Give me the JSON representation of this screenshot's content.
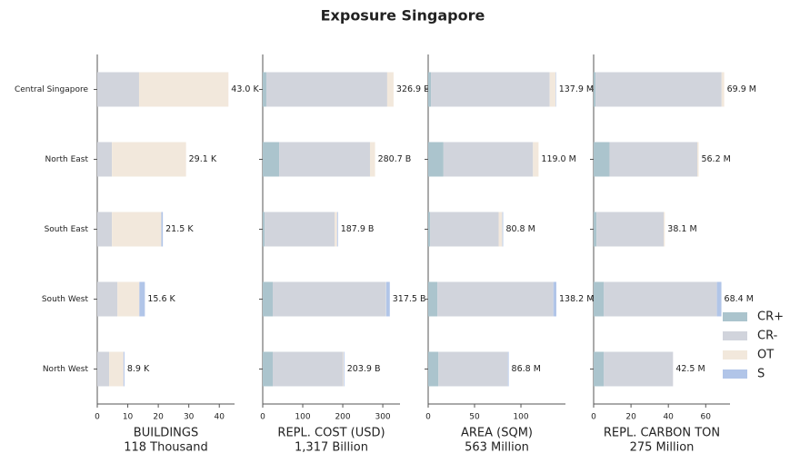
{
  "title": "Exposure Singapore",
  "categories": [
    "Central Singapore",
    "North East",
    "South East",
    "South West",
    "North West"
  ],
  "legend": {
    "position": "right",
    "series": [
      {
        "name": "CR+",
        "color": "#abc4cd"
      },
      {
        "name": "CR-",
        "color": "#d1d4dc"
      },
      {
        "name": "OT",
        "color": "#f2e8dc"
      },
      {
        "name": "S",
        "color": "#b1c5e8"
      }
    ]
  },
  "chart_data": [
    {
      "type": "bar",
      "orientation": "horizontal",
      "xlabel": "BUILDINGS",
      "subtitle": "118 Thousand",
      "xlim": [
        0,
        45
      ],
      "xticks": [
        0,
        10,
        20,
        30,
        40
      ],
      "series": [
        {
          "values": [
            0,
            0,
            0,
            0,
            0
          ]
        },
        {
          "values": [
            13.7,
            4.8,
            4.8,
            6.6,
            3.9
          ]
        },
        {
          "values": [
            29.3,
            24.3,
            16.2,
            7.2,
            4.7
          ]
        },
        {
          "values": [
            0,
            0,
            0.5,
            1.8,
            0.3
          ]
        }
      ],
      "total_labels": [
        "43.0 K",
        "29.1 K",
        "21.5 K",
        "15.6 K",
        "8.9 K"
      ]
    },
    {
      "type": "bar",
      "orientation": "horizontal",
      "xlabel": "REPL. COST (USD)",
      "subtitle": "1,317 Billion",
      "xlim": [
        0,
        343
      ],
      "xticks": [
        0,
        100,
        200,
        300
      ],
      "series": [
        {
          "values": [
            9,
            41,
            5,
            25,
            25
          ]
        },
        {
          "values": [
            302,
            227,
            175,
            282,
            175
          ]
        },
        {
          "values": [
            15.9,
            12.7,
            5.9,
            1,
            2
          ]
        },
        {
          "values": [
            0,
            0,
            2,
            9.5,
            1.9
          ]
        }
      ],
      "total_labels": [
        "326.9 B",
        "280.7 B",
        "187.9 B",
        "317.5 B",
        "203.9 B"
      ]
    },
    {
      "type": "bar",
      "orientation": "horizontal",
      "xlabel": "AREA (SQM)",
      "subtitle": "563 Million",
      "xlim": [
        0,
        148
      ],
      "xticks": [
        0,
        50,
        100
      ],
      "series": [
        {
          "values": [
            3,
            16.5,
            2,
            10,
            11
          ]
        },
        {
          "values": [
            128,
            96.5,
            74,
            125,
            75
          ]
        },
        {
          "values": [
            6.4,
            6,
            4,
            0,
            0
          ]
        },
        {
          "values": [
            0.5,
            0,
            0.8,
            3.2,
            0.8
          ]
        }
      ],
      "total_labels": [
        "137.9 M",
        "119.0 M",
        "80.8 M",
        "138.2 M",
        "86.8 M"
      ]
    },
    {
      "type": "bar",
      "orientation": "horizontal",
      "xlabel": "REPL. CARBON TON",
      "subtitle": "275 Million",
      "xlim": [
        0,
        73
      ],
      "xticks": [
        0,
        20,
        40,
        60
      ],
      "series": [
        {
          "values": [
            1,
            8.5,
            1.5,
            5.5,
            5.5
          ]
        },
        {
          "values": [
            67.5,
            47,
            36,
            60.5,
            37
          ]
        },
        {
          "values": [
            1.4,
            0.7,
            0.6,
            0,
            0
          ]
        },
        {
          "values": [
            0,
            0,
            0,
            2.4,
            0
          ]
        }
      ],
      "total_labels": [
        "69.9 M",
        "56.2 M",
        "38.1 M",
        "68.4 M",
        "42.5 M"
      ]
    }
  ]
}
